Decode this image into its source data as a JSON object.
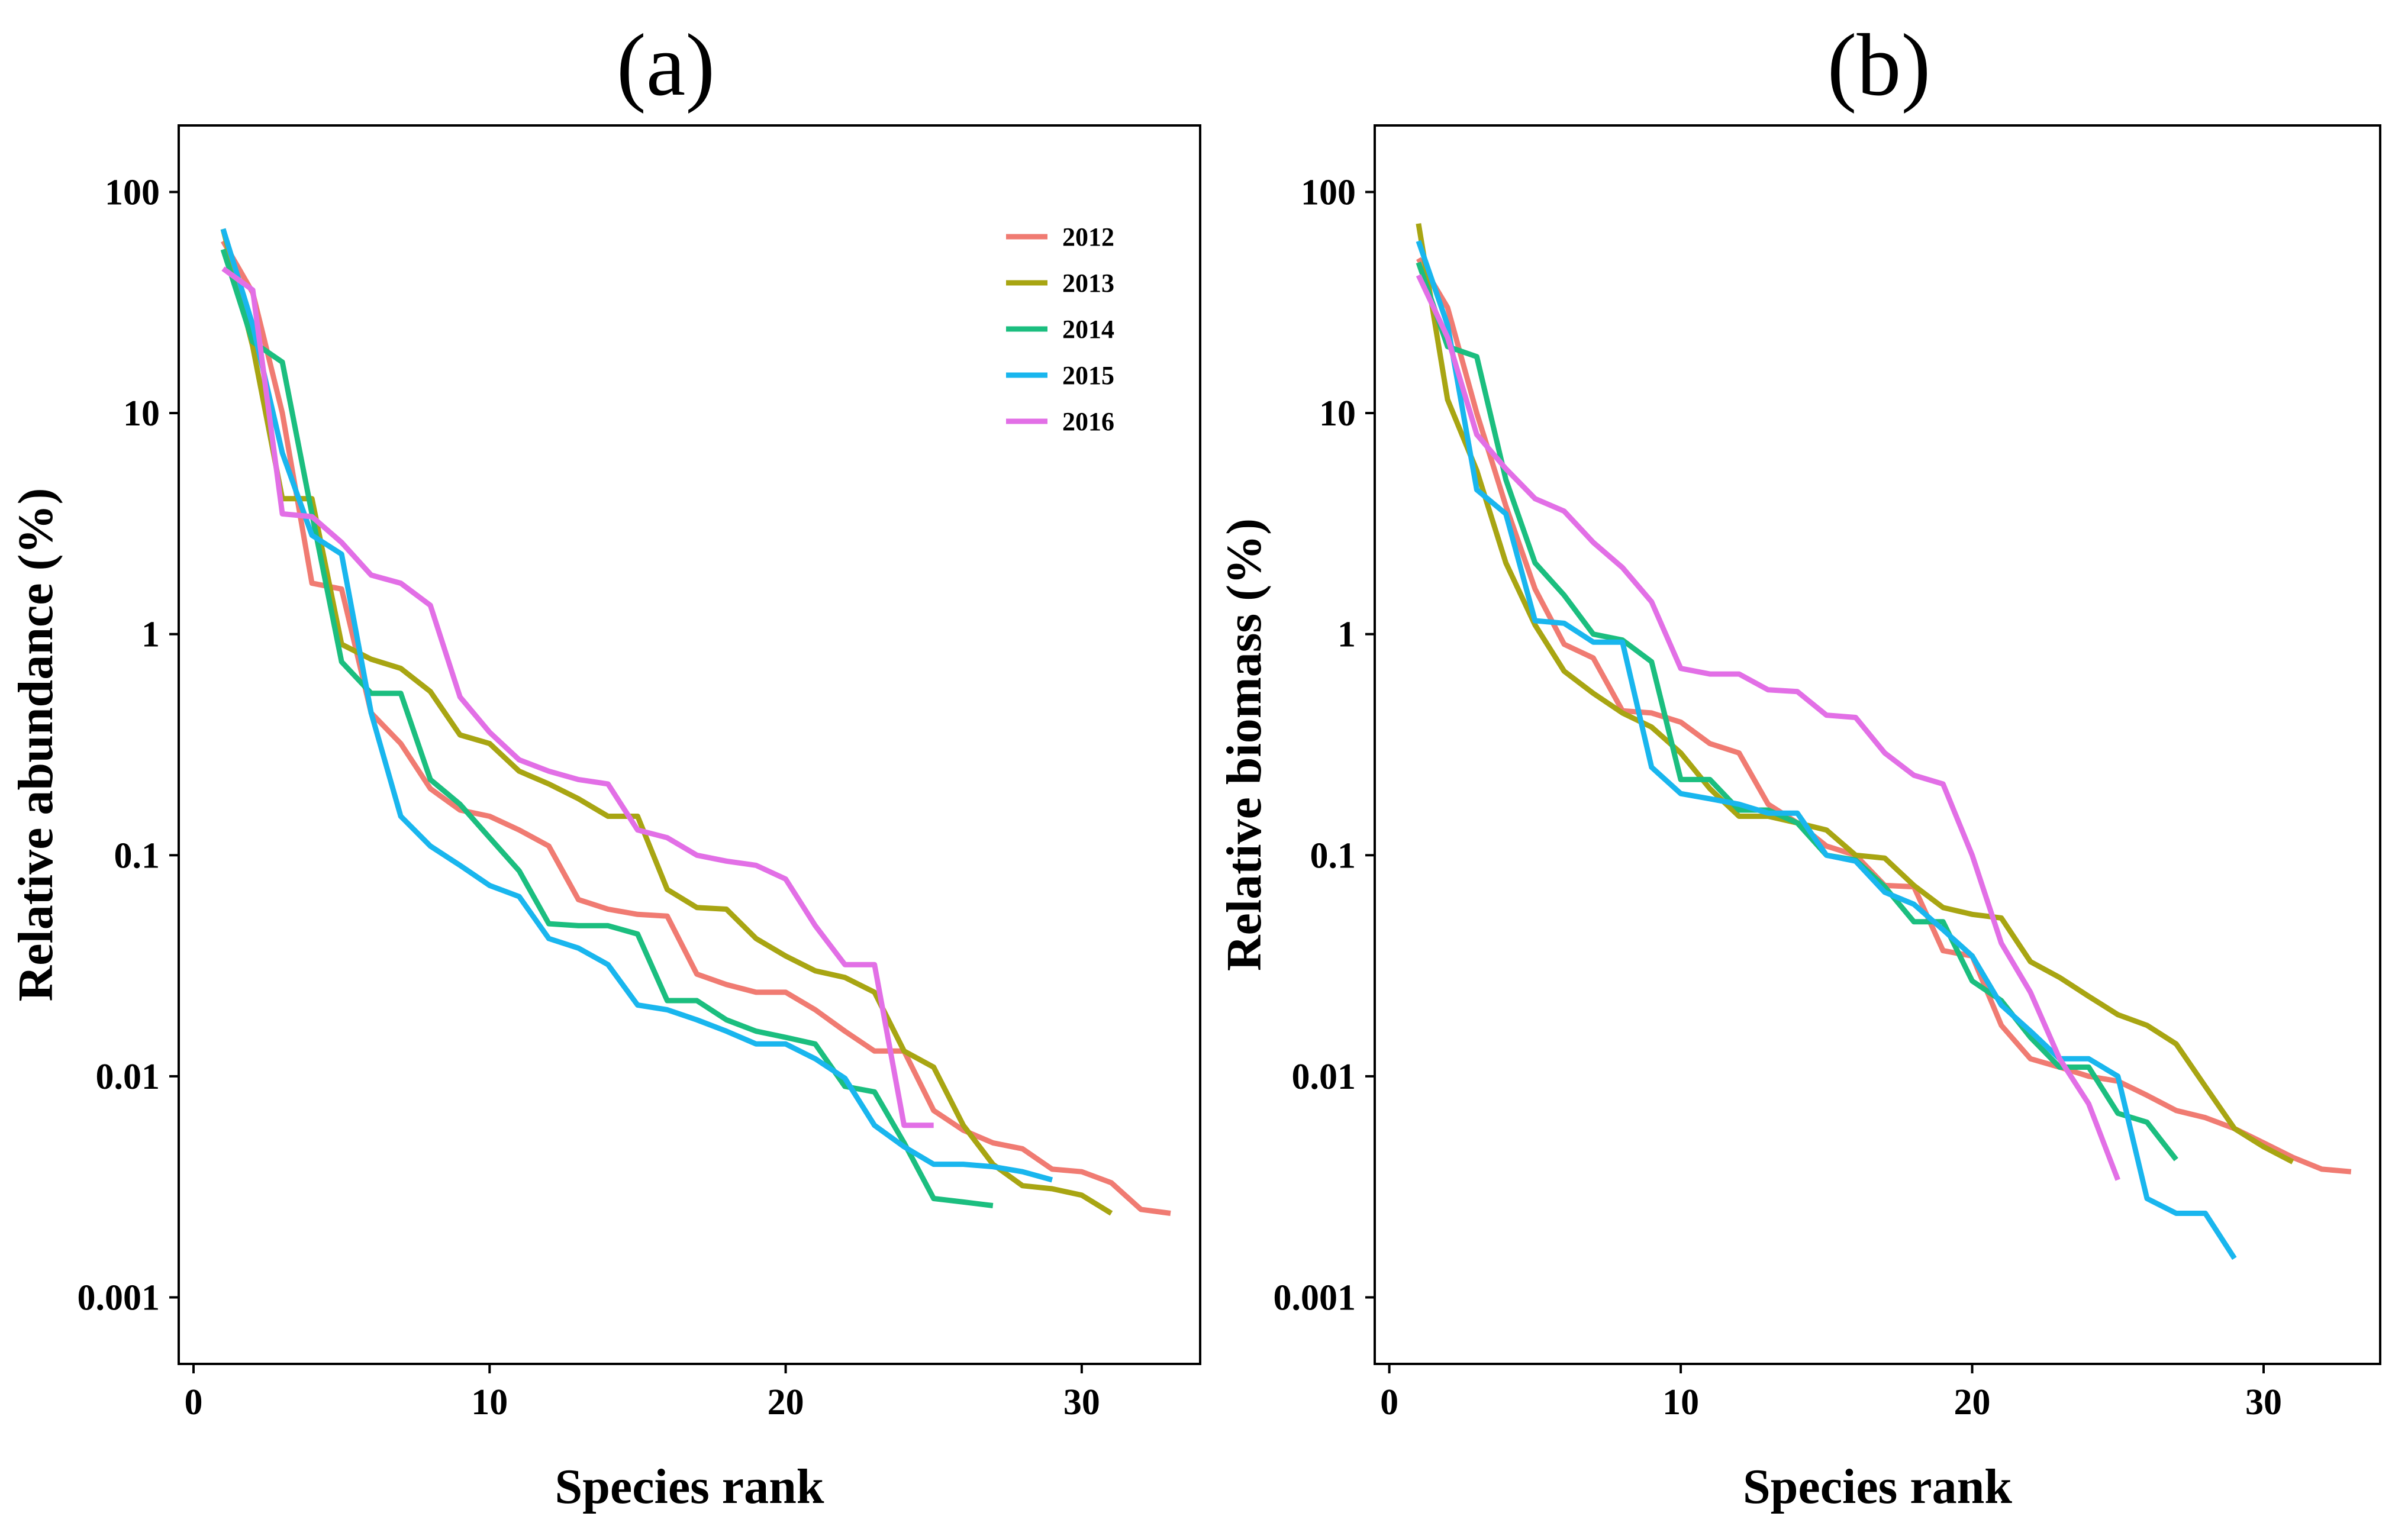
{
  "series_colors": {
    "2012": "#F07B72",
    "2013": "#A8A512",
    "2014": "#1BBE7F",
    "2015": "#19B6EE",
    "2016": "#E26FE6"
  },
  "chart_data": [
    {
      "type": "line",
      "title": "(a)",
      "xlabel": "Species rank",
      "ylabel": "Relative abundance (%)",
      "xlim": [
        -0.5,
        34
      ],
      "ylim": [
        0.0005,
        200
      ],
      "y_scale": "log",
      "x_ticks": [
        0,
        10,
        20,
        30
      ],
      "x_tick_labels": [
        "0",
        "10",
        "20",
        "30"
      ],
      "y_ticks": [
        0.001,
        0.01,
        0.1,
        1,
        10,
        100
      ],
      "y_tick_labels": [
        "0.001",
        "0.01",
        "0.1",
        "1",
        "10",
        "100"
      ],
      "grid": false,
      "legend": "top-right",
      "series": [
        {
          "name": "2012",
          "color": "#F07B72",
          "x": [
            1,
            2,
            3,
            4,
            5,
            6,
            7,
            8,
            9,
            10,
            11,
            12,
            13,
            14,
            15,
            16,
            17,
            18,
            19,
            20,
            21,
            22,
            23,
            24,
            25,
            26,
            27,
            28,
            29,
            30,
            31,
            32,
            33
          ],
          "y": [
            60,
            35,
            10,
            1.7,
            1.6,
            0.44,
            0.32,
            0.2,
            0.16,
            0.15,
            0.13,
            0.11,
            0.063,
            0.057,
            0.054,
            0.053,
            0.029,
            0.026,
            0.024,
            0.024,
            0.02,
            0.016,
            0.013,
            0.013,
            0.007,
            0.0057,
            0.005,
            0.0047,
            0.0038,
            0.0037,
            0.0033,
            0.0025,
            0.0024
          ]
        },
        {
          "name": "2013",
          "color": "#A8A512",
          "x": [
            1,
            2,
            3,
            4,
            5,
            6,
            7,
            8,
            9,
            10,
            11,
            12,
            13,
            14,
            15,
            16,
            17,
            18,
            19,
            20,
            21,
            22,
            23,
            24,
            25,
            26,
            27,
            28,
            29,
            30,
            31
          ],
          "y": [
            68,
            20,
            4.1,
            4.1,
            0.9,
            0.77,
            0.7,
            0.55,
            0.35,
            0.32,
            0.24,
            0.21,
            0.18,
            0.15,
            0.15,
            0.07,
            0.058,
            0.057,
            0.042,
            0.035,
            0.03,
            0.028,
            0.024,
            0.013,
            0.011,
            0.006,
            0.004,
            0.0032,
            0.0031,
            0.0029,
            0.0024
          ]
        },
        {
          "name": "2014",
          "color": "#1BBE7F",
          "x": [
            1,
            2,
            3,
            4,
            5,
            6,
            7,
            8,
            9,
            10,
            11,
            12,
            13,
            14,
            15,
            16,
            17,
            18,
            19,
            20,
            21,
            22,
            23,
            24,
            25,
            26,
            27
          ],
          "y": [
            55,
            21,
            17,
            3.5,
            0.75,
            0.54,
            0.54,
            0.22,
            0.17,
            0.12,
            0.085,
            0.049,
            0.048,
            0.048,
            0.044,
            0.022,
            0.022,
            0.018,
            0.016,
            0.015,
            0.014,
            0.009,
            0.0085,
            0.005,
            0.0028,
            0.0027,
            0.0026
          ]
        },
        {
          "name": "2015",
          "color": "#19B6EE",
          "x": [
            1,
            2,
            3,
            4,
            5,
            6,
            7,
            8,
            9,
            10,
            11,
            12,
            13,
            14,
            15,
            16,
            17,
            18,
            19,
            20,
            21,
            22,
            23,
            24,
            25,
            26,
            27,
            28,
            29
          ],
          "y": [
            68,
            25,
            6.6,
            2.8,
            2.3,
            0.44,
            0.15,
            0.11,
            0.09,
            0.073,
            0.065,
            0.042,
            0.038,
            0.032,
            0.021,
            0.02,
            0.018,
            0.016,
            0.014,
            0.014,
            0.012,
            0.0098,
            0.006,
            0.0048,
            0.004,
            0.004,
            0.0039,
            0.0037,
            0.0034
          ]
        },
        {
          "name": "2016",
          "color": "#E26FE6",
          "x": [
            1,
            2,
            3,
            4,
            5,
            6,
            7,
            8,
            9,
            10,
            11,
            12,
            13,
            14,
            15,
            16,
            17,
            18,
            19,
            20,
            21,
            22,
            23,
            24,
            25
          ],
          "y": [
            45,
            36,
            3.5,
            3.4,
            2.6,
            1.85,
            1.7,
            1.35,
            0.52,
            0.36,
            0.27,
            0.24,
            0.22,
            0.21,
            0.13,
            0.12,
            0.1,
            0.094,
            0.09,
            0.078,
            0.048,
            0.032,
            0.032,
            0.006,
            0.006
          ]
        }
      ]
    },
    {
      "type": "line",
      "title": "(b)",
      "xlabel": "Species rank",
      "ylabel": "Relative biomass (%)",
      "xlim": [
        -0.5,
        34
      ],
      "ylim": [
        0.0005,
        200
      ],
      "y_scale": "log",
      "x_ticks": [
        0,
        10,
        20,
        30
      ],
      "x_tick_labels": [
        "0",
        "10",
        "20",
        "30"
      ],
      "y_ticks": [
        0.001,
        0.01,
        0.1,
        1,
        10,
        100
      ],
      "y_tick_labels": [
        "0.001",
        "0.01",
        "0.1",
        "1",
        "10",
        "100"
      ],
      "grid": false,
      "legend": "none",
      "series": [
        {
          "name": "2012",
          "color": "#F07B72",
          "x": [
            1,
            2,
            3,
            4,
            5,
            6,
            7,
            8,
            9,
            10,
            11,
            12,
            13,
            14,
            15,
            16,
            17,
            18,
            19,
            20,
            21,
            22,
            23,
            24,
            25,
            26,
            27,
            28,
            29,
            30,
            31,
            32,
            33
          ],
          "y": [
            50,
            30,
            10,
            3.8,
            1.6,
            0.9,
            0.78,
            0.45,
            0.44,
            0.4,
            0.32,
            0.29,
            0.17,
            0.14,
            0.11,
            0.1,
            0.073,
            0.072,
            0.037,
            0.035,
            0.017,
            0.012,
            0.011,
            0.01,
            0.0095,
            0.0082,
            0.007,
            0.0065,
            0.0058,
            0.005,
            0.0043,
            0.0038,
            0.0037
          ]
        },
        {
          "name": "2013",
          "color": "#A8A512",
          "x": [
            1,
            2,
            3,
            4,
            5,
            6,
            7,
            8,
            9,
            10,
            11,
            12,
            13,
            14,
            15,
            16,
            17,
            18,
            19,
            20,
            21,
            22,
            23,
            24,
            25,
            26,
            27,
            28,
            29,
            30,
            31
          ],
          "y": [
            72,
            11.5,
            5.5,
            2.1,
            1.1,
            0.68,
            0.54,
            0.44,
            0.38,
            0.29,
            0.2,
            0.15,
            0.15,
            0.14,
            0.13,
            0.1,
            0.097,
            0.073,
            0.058,
            0.054,
            0.052,
            0.033,
            0.028,
            0.023,
            0.019,
            0.017,
            0.014,
            0.009,
            0.0058,
            0.0048,
            0.0041
          ]
        },
        {
          "name": "2014",
          "color": "#1BBE7F",
          "x": [
            1,
            2,
            3,
            4,
            5,
            6,
            7,
            8,
            9,
            10,
            11,
            12,
            13,
            14,
            15,
            16,
            17,
            18,
            19,
            20,
            21,
            22,
            23,
            24,
            25,
            26,
            27
          ],
          "y": [
            48,
            20,
            18,
            5,
            2.1,
            1.5,
            1,
            0.94,
            0.75,
            0.22,
            0.22,
            0.16,
            0.16,
            0.14,
            0.1,
            0.095,
            0.072,
            0.05,
            0.05,
            0.027,
            0.022,
            0.015,
            0.011,
            0.011,
            0.0068,
            0.0062,
            0.0042
          ]
        },
        {
          "name": "2015",
          "color": "#19B6EE",
          "x": [
            1,
            2,
            3,
            4,
            5,
            6,
            7,
            8,
            9,
            10,
            11,
            12,
            13,
            14,
            15,
            16,
            17,
            18,
            19,
            20,
            21,
            22,
            23,
            24,
            25,
            26,
            27,
            28,
            29
          ],
          "y": [
            60,
            25,
            4.5,
            3.5,
            1.15,
            1.12,
            0.92,
            0.92,
            0.25,
            0.19,
            0.18,
            0.17,
            0.155,
            0.155,
            0.1,
            0.094,
            0.068,
            0.06,
            0.046,
            0.035,
            0.021,
            0.016,
            0.012,
            0.012,
            0.01,
            0.0028,
            0.0024,
            0.0024,
            0.0015
          ]
        },
        {
          "name": "2016",
          "color": "#E26FE6",
          "x": [
            1,
            2,
            3,
            4,
            5,
            6,
            7,
            8,
            9,
            10,
            11,
            12,
            13,
            14,
            15,
            16,
            17,
            18,
            19,
            20,
            21,
            22,
            23,
            24,
            25
          ],
          "y": [
            42,
            22,
            8,
            5.6,
            4.1,
            3.6,
            2.6,
            2,
            1.4,
            0.7,
            0.66,
            0.66,
            0.56,
            0.55,
            0.43,
            0.42,
            0.29,
            0.23,
            0.21,
            0.1,
            0.04,
            0.024,
            0.012,
            0.0075,
            0.0034
          ]
        }
      ]
    }
  ]
}
